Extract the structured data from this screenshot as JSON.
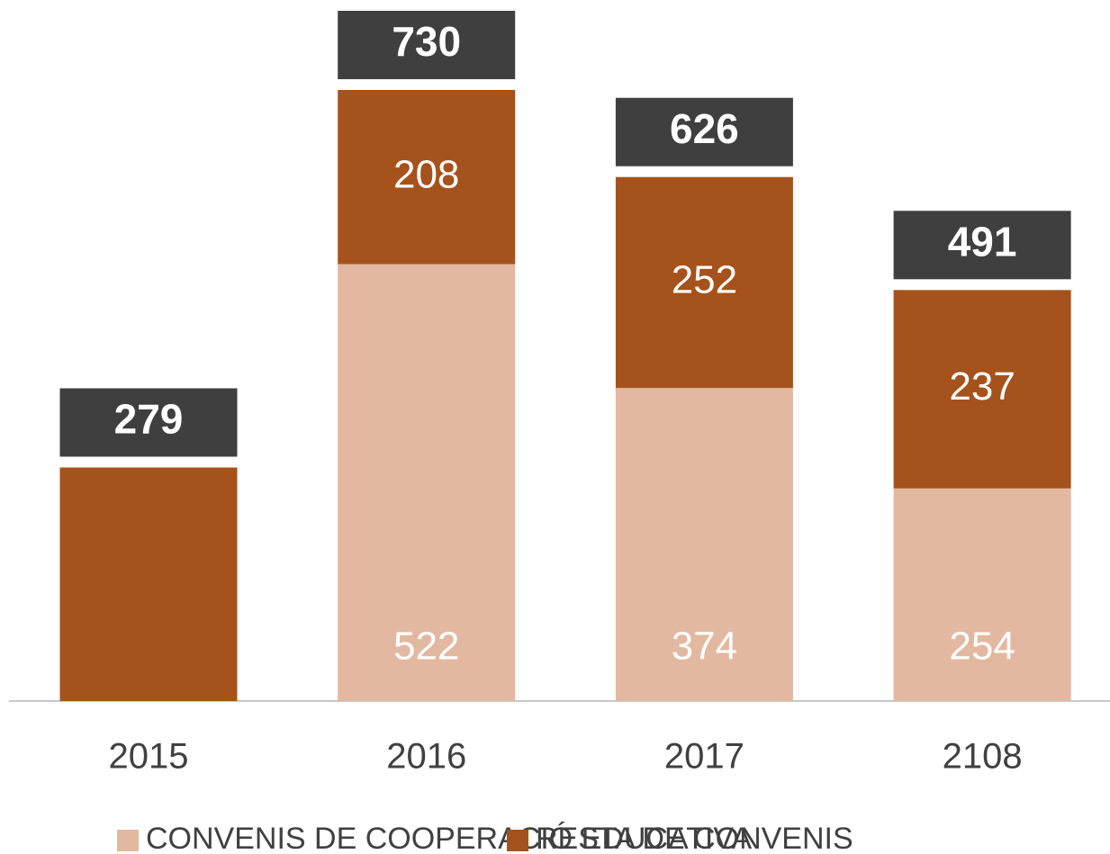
{
  "chart_data": {
    "type": "stacked_bar",
    "categories": [
      "2015",
      "2016",
      "2017",
      "2108"
    ],
    "series": [
      {
        "name": "CONVENIS DE COOPERACIÓ EDUCATIVA",
        "color": "#e3b8a0",
        "values": [
          null,
          522,
          374,
          254
        ]
      },
      {
        "name": "RESTA DE CONVENIS",
        "color": "#a5521c",
        "values": [
          279,
          208,
          252,
          237
        ]
      }
    ],
    "totals": [
      279,
      730,
      626,
      491
    ],
    "total_color": "#3f3f3f"
  }
}
